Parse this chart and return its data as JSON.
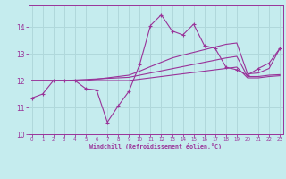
{
  "bg_color": "#c5ecee",
  "grid_color": "#b0d8db",
  "line_color": "#993399",
  "xlim": [
    -0.3,
    23.3
  ],
  "ylim": [
    10.0,
    14.8
  ],
  "xticks": [
    0,
    1,
    2,
    3,
    4,
    5,
    6,
    7,
    8,
    9,
    10,
    11,
    12,
    13,
    14,
    15,
    16,
    17,
    18,
    19,
    20,
    21,
    22,
    23
  ],
  "yticks": [
    10,
    11,
    12,
    13,
    14
  ],
  "xlabel": "Windchill (Refroidissement éolien,°C)",
  "line1_x": [
    0,
    1,
    2,
    3,
    4,
    5,
    6,
    7,
    8,
    9,
    10,
    11,
    12,
    13,
    14,
    15,
    16,
    17,
    18,
    19,
    20,
    21,
    22,
    23
  ],
  "line1_y": [
    11.35,
    11.5,
    12.0,
    12.0,
    12.0,
    11.7,
    11.65,
    10.45,
    11.05,
    11.6,
    12.6,
    14.05,
    14.45,
    13.85,
    13.7,
    14.1,
    13.3,
    13.2,
    12.5,
    12.4,
    12.2,
    12.45,
    12.65,
    13.2
  ],
  "line_a_x": [
    0,
    1,
    2,
    3,
    4,
    5,
    6,
    7,
    8,
    9,
    10,
    11,
    12,
    13,
    14,
    15,
    16,
    17,
    18,
    19,
    20,
    21,
    22,
    23
  ],
  "line_a_y": [
    12.0,
    12.0,
    12.0,
    12.0,
    12.02,
    12.04,
    12.06,
    12.08,
    12.1,
    12.12,
    12.2,
    12.28,
    12.36,
    12.44,
    12.52,
    12.6,
    12.68,
    12.76,
    12.84,
    12.9,
    12.15,
    12.15,
    12.2,
    12.22
  ],
  "line_b_x": [
    0,
    1,
    2,
    3,
    4,
    5,
    6,
    7,
    8,
    9,
    10,
    11,
    12,
    13,
    14,
    15,
    16,
    17,
    18,
    19,
    20,
    21,
    22,
    23
  ],
  "line_b_y": [
    12.0,
    12.0,
    12.0,
    12.0,
    12.0,
    12.0,
    12.05,
    12.1,
    12.15,
    12.2,
    12.35,
    12.52,
    12.68,
    12.84,
    12.95,
    13.05,
    13.15,
    13.25,
    13.35,
    13.4,
    12.25,
    12.28,
    12.45,
    13.2
  ],
  "line_c_x": [
    0,
    1,
    2,
    3,
    4,
    5,
    6,
    7,
    8,
    9,
    10,
    11,
    12,
    13,
    14,
    15,
    16,
    17,
    18,
    19,
    20,
    21,
    22,
    23
  ],
  "line_c_y": [
    12.0,
    12.0,
    12.0,
    12.0,
    12.0,
    12.0,
    12.0,
    12.0,
    12.0,
    12.0,
    12.05,
    12.1,
    12.15,
    12.2,
    12.25,
    12.3,
    12.35,
    12.4,
    12.45,
    12.5,
    12.1,
    12.1,
    12.15,
    12.18
  ]
}
